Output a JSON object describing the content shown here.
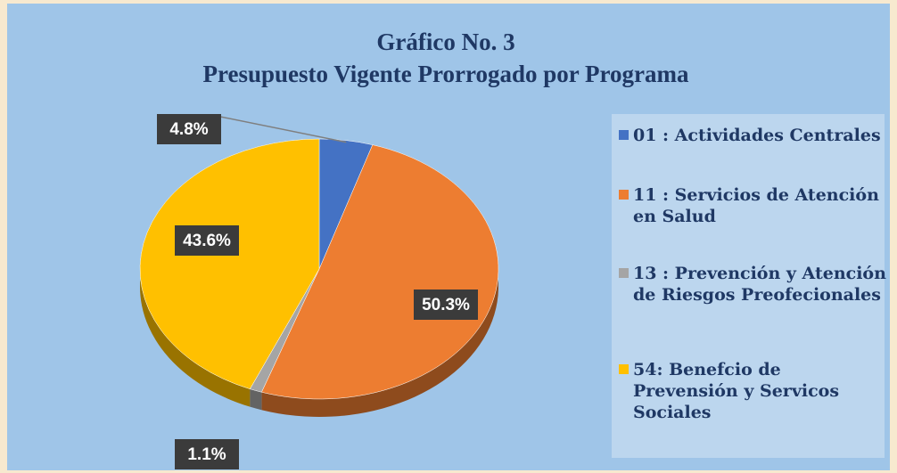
{
  "chart_data": {
    "type": "pie",
    "title": "Gráfico No. 3",
    "subtitle": "Presupuesto Vigente Prorrogado por Programa",
    "categories": [
      "01 : Actividades Centrales",
      "11 : Servicios de Atención en Salud",
      "13 : Prevención y Atención de Riesgos Preofecionales",
      "54: Benefcio de Prevensión y Servicos Sociales"
    ],
    "values": [
      4.8,
      50.3,
      1.1,
      43.6
    ],
    "value_labels": [
      "4.8%",
      "50.3%",
      "1.1%",
      "43.6%"
    ],
    "colors": [
      "#4472c4",
      "#ed7d31",
      "#a5a5a5",
      "#ffc000"
    ],
    "legend": "right"
  }
}
